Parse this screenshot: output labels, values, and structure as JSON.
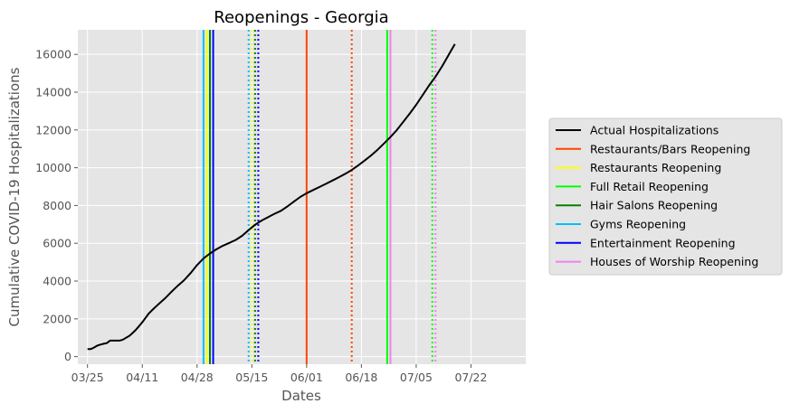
{
  "chart_data": {
    "type": "line",
    "title": "Reopenings - Georgia",
    "xlabel": "Dates",
    "ylabel": "Cumulative COVID-19 Hospitalizations",
    "x_ticks": [
      "03/25",
      "04/11",
      "04/28",
      "05/15",
      "06/01",
      "06/18",
      "07/05",
      "07/22"
    ],
    "y_ticks": [
      0,
      2000,
      4000,
      6000,
      8000,
      10000,
      12000,
      14000,
      16000
    ],
    "x_start": "2020-03-25",
    "ylim": [
      -400,
      17300
    ],
    "xlim_days": [
      -3,
      136
    ],
    "grid": true,
    "background": "#e5e5e5",
    "legend_position": "right",
    "series": [
      {
        "name": "Actual Hospitalizations",
        "color": "#000000",
        "points": [
          [
            0,
            400
          ],
          [
            1,
            400
          ],
          [
            2,
            480
          ],
          [
            3,
            580
          ],
          [
            4,
            640
          ],
          [
            5,
            680
          ],
          [
            6,
            720
          ],
          [
            7,
            850
          ],
          [
            8,
            850
          ],
          [
            9,
            850
          ],
          [
            10,
            850
          ],
          [
            11,
            900
          ],
          [
            12,
            1000
          ],
          [
            13,
            1100
          ],
          [
            14,
            1250
          ],
          [
            15,
            1420
          ],
          [
            16,
            1620
          ],
          [
            17,
            1820
          ],
          [
            18,
            2050
          ],
          [
            19,
            2280
          ],
          [
            20,
            2450
          ],
          [
            22,
            2770
          ],
          [
            24,
            3080
          ],
          [
            26,
            3420
          ],
          [
            28,
            3750
          ],
          [
            30,
            4050
          ],
          [
            32,
            4420
          ],
          [
            34,
            4850
          ],
          [
            36,
            5200
          ],
          [
            38,
            5460
          ],
          [
            40,
            5680
          ],
          [
            42,
            5870
          ],
          [
            44,
            6020
          ],
          [
            46,
            6180
          ],
          [
            48,
            6400
          ],
          [
            50,
            6700
          ],
          [
            52,
            6980
          ],
          [
            54,
            7200
          ],
          [
            56,
            7380
          ],
          [
            58,
            7560
          ],
          [
            60,
            7720
          ],
          [
            62,
            7950
          ],
          [
            64,
            8200
          ],
          [
            66,
            8450
          ],
          [
            68,
            8650
          ],
          [
            70,
            8820
          ],
          [
            72,
            8980
          ],
          [
            74,
            9150
          ],
          [
            76,
            9320
          ],
          [
            78,
            9500
          ],
          [
            80,
            9680
          ],
          [
            82,
            9880
          ],
          [
            84,
            10120
          ],
          [
            86,
            10380
          ],
          [
            88,
            10650
          ],
          [
            90,
            10950
          ],
          [
            92,
            11280
          ],
          [
            94,
            11620
          ],
          [
            96,
            12000
          ],
          [
            98,
            12430
          ],
          [
            100,
            12870
          ],
          [
            102,
            13330
          ],
          [
            104,
            13840
          ],
          [
            106,
            14360
          ],
          [
            108,
            14820
          ],
          [
            110,
            15360
          ],
          [
            112,
            15950
          ],
          [
            113,
            16250
          ],
          [
            114,
            16550
          ]
        ]
      }
    ],
    "reopenings": [
      {
        "name": "Restaurants/Bars Reopening",
        "color": "#ff4500",
        "solid_day": 68,
        "dotted_day": 82
      },
      {
        "name": "Restaurants Reopening",
        "color": "#ffff00",
        "solid_day": 37,
        "dotted_day": 51
      },
      {
        "name": "Full Retail Reopening",
        "color": "#00ff00",
        "solid_day": 93,
        "dotted_day": 107
      },
      {
        "name": "Hair Salons Reopening",
        "color": "#008000",
        "solid_day": 38,
        "dotted_day": 52
      },
      {
        "name": "Gyms Reopening",
        "color": "#00bfff",
        "solid_day": 36,
        "dotted_day": 50
      },
      {
        "name": "Entertainment Reopening",
        "color": "#0000ff",
        "solid_day": 39,
        "dotted_day": 53
      },
      {
        "name": "Houses of Worship Reopening",
        "color": "#ee82ee",
        "solid_day": 94,
        "dotted_day": 108
      }
    ]
  }
}
